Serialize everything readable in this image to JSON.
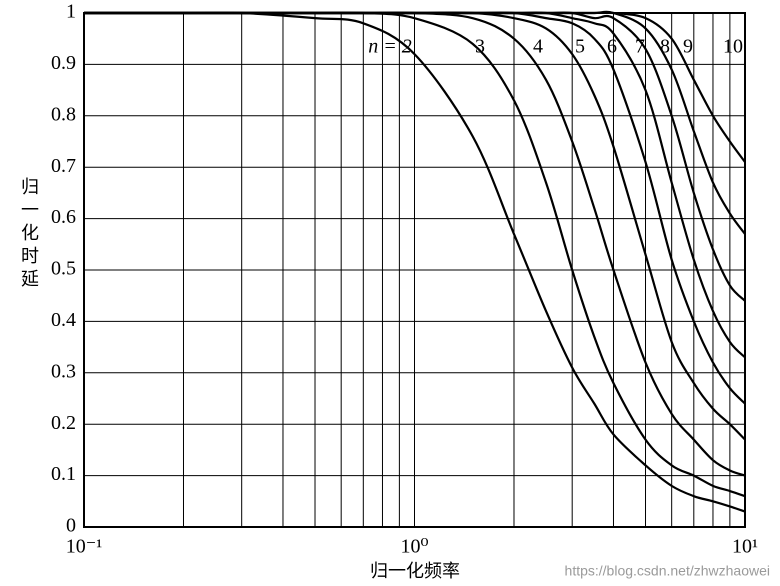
{
  "chart_data": {
    "type": "line",
    "x_label": "归一化频率",
    "y_label": "归一化时延",
    "watermark": "https://blog.csdn.net/zhwzhaowei",
    "log_x": true,
    "grid": true,
    "color": "#000000",
    "xlim": [
      0.1,
      10
    ],
    "ylim": [
      0,
      1
    ],
    "xticks": [
      {
        "value": 0.1,
        "label": "10⁻¹"
      },
      {
        "value": 1,
        "label": "10⁰"
      },
      {
        "value": 10,
        "label": "10¹"
      }
    ],
    "xminor": [
      0.2,
      0.3,
      0.4,
      0.5,
      0.6,
      0.7,
      0.8,
      0.9,
      2,
      3,
      4,
      5,
      6,
      7,
      8,
      9
    ],
    "yticks": [
      0,
      0.1,
      0.2,
      0.3,
      0.4,
      0.5,
      0.6,
      0.7,
      0.8,
      0.9,
      1
    ],
    "x": [
      0.1,
      0.2,
      0.3,
      0.5,
      0.7,
      1,
      1.5,
      2,
      2.5,
      3,
      3.5,
      4,
      5,
      6,
      7,
      8,
      9,
      10
    ],
    "series": [
      {
        "name": "n = 2",
        "values": [
          1,
          1,
          1,
          0.99,
          0.98,
          0.92,
          0.76,
          0.57,
          0.42,
          0.31,
          0.24,
          0.18,
          0.12,
          0.08,
          0.06,
          0.05,
          0.04,
          0.03
        ]
      },
      {
        "name": "3",
        "values": [
          1,
          1,
          1,
          1,
          1,
          0.99,
          0.94,
          0.83,
          0.67,
          0.5,
          0.37,
          0.28,
          0.17,
          0.12,
          0.1,
          0.08,
          0.07,
          0.06
        ]
      },
      {
        "name": "4",
        "values": [
          1,
          1,
          1,
          1,
          1,
          1,
          0.99,
          0.95,
          0.87,
          0.75,
          0.62,
          0.5,
          0.32,
          0.22,
          0.17,
          0.13,
          0.11,
          0.1
        ]
      },
      {
        "name": "5",
        "values": [
          1,
          1,
          1,
          1,
          1,
          1,
          1,
          0.99,
          0.97,
          0.92,
          0.84,
          0.74,
          0.53,
          0.36,
          0.28,
          0.23,
          0.2,
          0.17
        ]
      },
      {
        "name": "6",
        "values": [
          1,
          1,
          1,
          1,
          1,
          1,
          1,
          1,
          0.99,
          0.98,
          0.95,
          0.89,
          0.71,
          0.52,
          0.4,
          0.32,
          0.27,
          0.24
        ]
      },
      {
        "name": "7",
        "values": [
          1,
          1,
          1,
          1,
          1,
          1,
          1,
          1,
          1,
          0.99,
          0.98,
          0.96,
          0.85,
          0.67,
          0.52,
          0.42,
          0.36,
          0.33
        ]
      },
      {
        "name": "8",
        "values": [
          1,
          1,
          1,
          1,
          1,
          1,
          1,
          1,
          1,
          1,
          0.99,
          0.99,
          0.93,
          0.8,
          0.65,
          0.54,
          0.47,
          0.44
        ]
      },
      {
        "name": "9",
        "values": [
          1,
          1,
          1,
          1,
          1,
          1,
          1,
          1,
          1,
          1,
          1,
          1,
          0.97,
          0.89,
          0.77,
          0.67,
          0.61,
          0.57
        ]
      },
      {
        "name": "10",
        "values": [
          1,
          1,
          1,
          1,
          1,
          1,
          1,
          1,
          1,
          1,
          1,
          1,
          0.99,
          0.95,
          0.87,
          0.8,
          0.75,
          0.71
        ]
      }
    ]
  }
}
